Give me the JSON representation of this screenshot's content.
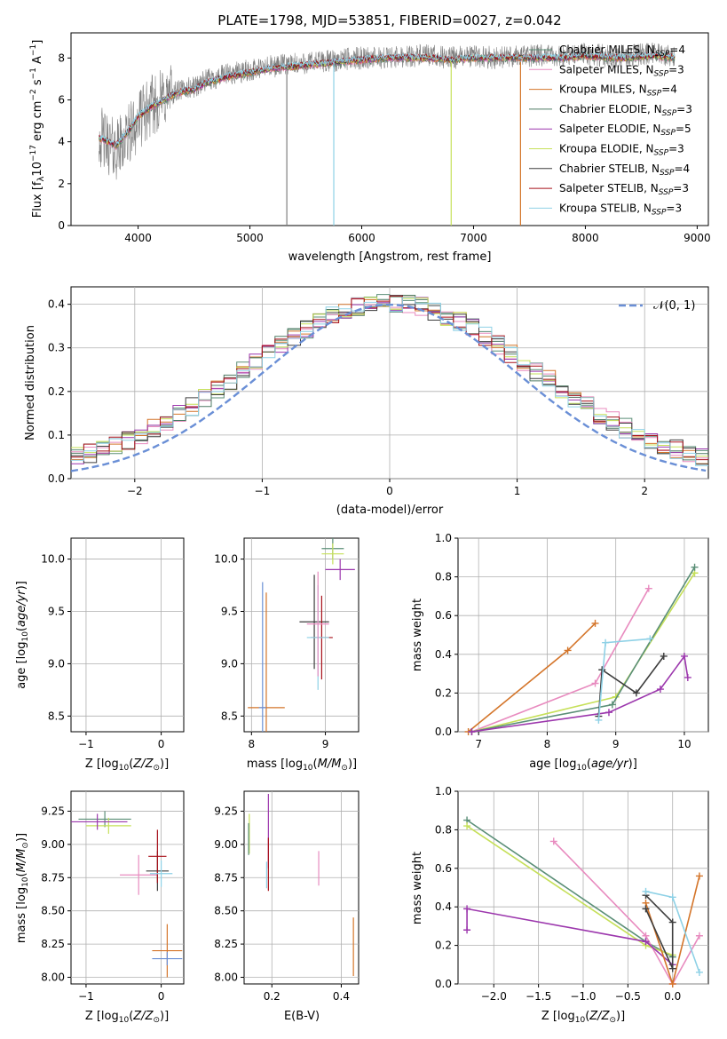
{
  "chart_data": [
    {
      "type": "line",
      "title": "PLATE=1798, MJD=53851, FIBERID=0027, z=0.042",
      "xlabel": "wavelength [Angstrom, rest frame]",
      "ylabel": "Flux [f_λ10^-17 erg cm^-2 s^-1 A^-1]",
      "xlim": [
        3400,
        9100
      ],
      "ylim": [
        0,
        9.2
      ],
      "xticks": [
        "4000",
        "5000",
        "6000",
        "7000",
        "8000",
        "9000"
      ],
      "yticks": [
        "0",
        "2",
        "4",
        "6",
        "8"
      ],
      "grid": false,
      "legend_position": "top-right",
      "observed": {
        "color": "#808080",
        "x": [
          3650,
          3700,
          3800,
          3900,
          4000,
          4100,
          4200,
          4300,
          4400,
          4500,
          4600,
          4800,
          5000,
          5200,
          5400,
          5600,
          5800,
          6000,
          6200,
          6400,
          6600,
          6800,
          7000,
          7200,
          7400,
          7600,
          7800,
          8000,
          8200,
          8400,
          8600,
          8800
        ],
        "y": [
          4.3,
          4.0,
          3.6,
          4.2,
          5.0,
          5.6,
          6.0,
          6.3,
          6.5,
          6.6,
          6.9,
          7.2,
          7.4,
          7.6,
          7.7,
          7.8,
          7.9,
          8.0,
          8.0,
          8.1,
          8.1,
          8.0,
          8.1,
          8.0,
          8.1,
          8.1,
          8.1,
          8.2,
          8.1,
          8.1,
          8.2,
          8.1
        ]
      },
      "series": [
        {
          "name": "Chabrier MILES, N_SSP=4",
          "color": "#5b8f77"
        },
        {
          "name": "Salpeter MILES, N_SSP=3",
          "color": "#e88bbf"
        },
        {
          "name": "Kroupa MILES, N_SSP=4",
          "color": "#d4752a"
        },
        {
          "name": "Chabrier ELODIE, N_SSP=3",
          "color": "#4d7a63"
        },
        {
          "name": "Salpeter ELODIE, N_SSP=5",
          "color": "#9c37ad"
        },
        {
          "name": "Kroupa ELODIE, N_SSP=3",
          "color": "#c6e05a"
        },
        {
          "name": "Chabrier STELIB, N_SSP=4",
          "color": "#3d3d3d"
        },
        {
          "name": "Salpeter STELIB, N_SSP=3",
          "color": "#a8111a"
        },
        {
          "name": "Kroupa STELIB, N_SSP=3",
          "color": "#8ed1e6"
        }
      ],
      "model_x": [
        3650,
        3700,
        3800,
        3900,
        4000,
        4100,
        4200,
        4300,
        4400,
        4500,
        4600,
        4800,
        5000,
        5200,
        5400,
        5600,
        5800,
        6000,
        6200,
        6400,
        6600,
        6800,
        7000,
        7200,
        7400,
        7600,
        7800,
        8000,
        8200,
        8400,
        8600,
        8800
      ],
      "model_y": [
        4.2,
        4.1,
        3.8,
        4.4,
        5.2,
        5.6,
        5.9,
        6.2,
        6.4,
        6.5,
        6.8,
        7.1,
        7.3,
        7.5,
        7.6,
        7.7,
        7.8,
        7.9,
        8.0,
        8.0,
        8.0,
        7.9,
        8.0,
        8.0,
        8.0,
        8.0,
        8.0,
        8.1,
        8.0,
        8.0,
        8.1,
        8.0
      ]
    },
    {
      "type": "bar",
      "xlabel": "(data-model)/error",
      "ylabel": "Normed distribution",
      "xlim": [
        -2.5,
        2.5
      ],
      "ylim": [
        0,
        0.44
      ],
      "xticks": [
        "−2",
        "−1",
        "0",
        "1",
        "2"
      ],
      "yticks": [
        "0.0",
        "0.1",
        "0.2",
        "0.3",
        "0.4"
      ],
      "grid": true,
      "legend": "𝒩(0, 1)",
      "legend_position": "top-right",
      "gaussian_color": "#6a8fd6",
      "bin_width": 0.1
    },
    {
      "type": "scatter",
      "xlabel": "Z [log10(Z/Z⊙)]",
      "ylabel": "age [log10(age/yr)]",
      "xlim": [
        -1.2,
        0.3
      ],
      "ylim": [
        8.35,
        10.2
      ],
      "xticks": [
        "−1",
        "0"
      ],
      "yticks": [
        "8.5",
        "9.0",
        "9.5",
        "10.0"
      ],
      "grid": true,
      "points": [
        {
          "x": -0.6,
          "y": 10.1,
          "xerr": 0.35,
          "yerr": 0.1,
          "color": "#5b8f77"
        },
        {
          "x": -0.7,
          "y": 10.05,
          "xerr": 0.3,
          "yerr": 0.1,
          "color": "#c6e05a"
        },
        {
          "x": -0.85,
          "y": 9.9,
          "xerr": 0.4,
          "yerr": 0.12,
          "color": "#9c37ad"
        },
        {
          "x": -0.3,
          "y": 9.38,
          "xerr": 0.25,
          "yerr": 0.3,
          "color": "#e88bbf"
        },
        {
          "x": -0.05,
          "y": 9.42,
          "xerr": 0.15,
          "yerr": 0.3,
          "color": "#3d3d3d"
        },
        {
          "x": -0.1,
          "y": 9.25,
          "xerr": 0.12,
          "yerr": 0.5,
          "color": "#a8111a"
        },
        {
          "x": 0.0,
          "y": 9.25,
          "xerr": 0.15,
          "yerr": 0.5,
          "color": "#8ed1e6"
        },
        {
          "x": 0.08,
          "y": 8.58,
          "xerr": 0.2,
          "yerr": 1.2,
          "color": "#d4752a"
        }
      ]
    },
    {
      "type": "scatter",
      "xlabel": "mass [log10(M/M⊙)]",
      "xlim": [
        7.9,
        9.45
      ],
      "ylim": [
        8.35,
        10.2
      ],
      "xticks": [
        "8",
        "9"
      ],
      "yticks": [
        "8.5",
        "9.0",
        "9.5",
        "10.0"
      ],
      "grid": true,
      "points": [
        {
          "x": 9.1,
          "y": 10.1,
          "xerr": 0.15,
          "yerr": 0.1,
          "color": "#5b8f77"
        },
        {
          "x": 9.1,
          "y": 10.05,
          "xerr": 0.15,
          "yerr": 0.1,
          "color": "#c6e05a"
        },
        {
          "x": 9.2,
          "y": 9.9,
          "xerr": 0.2,
          "yerr": 0.1,
          "color": "#9c37ad"
        },
        {
          "x": 8.85,
          "y": 9.4,
          "xerr": 0.2,
          "yerr": 0.45,
          "color": "#3d3d3d"
        },
        {
          "x": 8.95,
          "y": 9.25,
          "xerr": 0.15,
          "yerr": 0.4,
          "color": "#a8111a"
        },
        {
          "x": 8.9,
          "y": 9.25,
          "xerr": 0.15,
          "yerr": 0.5,
          "color": "#8ed1e6"
        },
        {
          "x": 8.9,
          "y": 9.38,
          "xerr": 0.15,
          "yerr": 0.5,
          "color": "#e88bbf"
        },
        {
          "x": 8.2,
          "y": 8.58,
          "xerr": 0.25,
          "yerr": 1.1,
          "color": "#d4752a"
        },
        {
          "x": 8.15,
          "y": 8.58,
          "xerr": 0.05,
          "yerr": 1.2,
          "color": "#6a8fd6"
        }
      ]
    },
    {
      "type": "line",
      "xlabel": "age [log10(age/yr)]",
      "ylabel": "mass weight",
      "xlim": [
        6.7,
        10.35
      ],
      "ylim": [
        0,
        1
      ],
      "xticks": [
        "7",
        "8",
        "9",
        "10"
      ],
      "yticks": [
        "0.0",
        "0.2",
        "0.4",
        "0.6",
        "0.8",
        "1.0"
      ],
      "grid": true,
      "series": [
        {
          "color": "#d4752a",
          "x": [
            6.85,
            8.3,
            8.7
          ],
          "y": [
            0.0,
            0.42,
            0.56
          ]
        },
        {
          "color": "#e88bbf",
          "x": [
            6.9,
            8.7,
            9.48
          ],
          "y": [
            0.0,
            0.25,
            0.74
          ]
        },
        {
          "color": "#c6e05a",
          "x": [
            6.9,
            9.0,
            10.15
          ],
          "y": [
            0.0,
            0.18,
            0.82
          ]
        },
        {
          "color": "#5b8f77",
          "x": [
            6.9,
            8.95,
            10.15
          ],
          "y": [
            0.0,
            0.14,
            0.85
          ]
        },
        {
          "color": "#9c37ad",
          "x": [
            6.9,
            8.9,
            9.65,
            10.0,
            10.05
          ],
          "y": [
            0.0,
            0.1,
            0.22,
            0.39,
            0.28
          ]
        },
        {
          "color": "#3d3d3d",
          "x": [
            8.75,
            8.8,
            9.3,
            9.7
          ],
          "y": [
            0.08,
            0.32,
            0.2,
            0.39
          ]
        },
        {
          "color": "#8ed1e6",
          "x": [
            8.75,
            8.85,
            9.5
          ],
          "y": [
            0.06,
            0.46,
            0.48
          ]
        }
      ]
    },
    {
      "type": "scatter",
      "xlabel": "Z [log10(Z/Z⊙)]",
      "ylabel": "mass [log10(M/M⊙)]",
      "xlim": [
        -1.2,
        0.3
      ],
      "ylim": [
        7.95,
        9.4
      ],
      "xticks": [
        "−1",
        "0"
      ],
      "yticks": [
        "8.00",
        "8.25",
        "8.50",
        "8.75",
        "9.00",
        "9.25"
      ],
      "grid": true,
      "points": [
        {
          "x": -0.75,
          "y": 9.19,
          "xerr": 0.35,
          "yerr": 0.06,
          "color": "#5b8f77"
        },
        {
          "x": -0.7,
          "y": 9.14,
          "xerr": 0.3,
          "yerr": 0.06,
          "color": "#c6e05a"
        },
        {
          "x": -0.85,
          "y": 9.17,
          "xerr": 0.4,
          "yerr": 0.06,
          "color": "#9c37ad"
        },
        {
          "x": -0.3,
          "y": 8.77,
          "xerr": 0.25,
          "yerr": 0.15,
          "color": "#e88bbf"
        },
        {
          "x": -0.05,
          "y": 8.8,
          "xerr": 0.15,
          "yerr": 0.15,
          "color": "#3d3d3d"
        },
        {
          "x": -0.05,
          "y": 8.91,
          "xerr": 0.12,
          "yerr": 0.2,
          "color": "#a8111a"
        },
        {
          "x": 0.0,
          "y": 8.78,
          "xerr": 0.15,
          "yerr": 0.1,
          "color": "#8ed1e6"
        },
        {
          "x": 0.08,
          "y": 8.2,
          "xerr": 0.2,
          "yerr": 0.2,
          "color": "#d4752a"
        },
        {
          "x": 0.08,
          "y": 8.14,
          "xerr": 0.2,
          "yerr": 0.05,
          "color": "#6a8fd6"
        }
      ]
    },
    {
      "type": "scatter",
      "xlabel": "E(B-V)",
      "xlim": [
        0.12,
        0.45
      ],
      "ylim": [
        7.95,
        9.4
      ],
      "xticks": [
        "0.2",
        "0.4"
      ],
      "yticks": [
        "8.00",
        "8.25",
        "8.50",
        "8.75",
        "9.00",
        "9.25"
      ],
      "grid": true,
      "points": [
        {
          "x": 0.135,
          "y": 9.08,
          "yerr": 0.15,
          "color": "#c6e05a"
        },
        {
          "x": 0.133,
          "y": 9.04,
          "yerr": 0.12,
          "color": "#5b8f77"
        },
        {
          "x": 0.19,
          "y": 9.1,
          "yerr": 0.28,
          "color": "#9c37ad"
        },
        {
          "x": 0.19,
          "y": 8.85,
          "yerr": 0.2,
          "color": "#a8111a"
        },
        {
          "x": 0.185,
          "y": 8.77,
          "yerr": 0.1,
          "color": "#8ed1e6"
        },
        {
          "x": 0.335,
          "y": 8.82,
          "yerr": 0.13,
          "color": "#e88bbf"
        },
        {
          "x": 0.435,
          "y": 8.23,
          "yerr": 0.22,
          "color": "#d4752a"
        }
      ]
    },
    {
      "type": "line",
      "xlabel": "Z [log10(Z/Z⊙)]",
      "ylabel": "mass weight",
      "xlim": [
        -2.4,
        0.4
      ],
      "ylim": [
        0,
        1
      ],
      "xticks": [
        "−2.0",
        "−1.5",
        "−1.0",
        "−0.5",
        "0.0"
      ],
      "yticks": [
        "0.0",
        "0.2",
        "0.4",
        "0.6",
        "0.8",
        "1.0"
      ],
      "grid": true,
      "series": [
        {
          "color": "#5b8f77",
          "x": [
            -2.3,
            -0.3,
            0.0
          ],
          "y": [
            0.85,
            0.22,
            0.14
          ]
        },
        {
          "color": "#c6e05a",
          "x": [
            -2.3,
            -0.3,
            0.0
          ],
          "y": [
            0.82,
            0.2,
            0.15
          ]
        },
        {
          "color": "#e88bbf",
          "x": [
            -1.33,
            -0.3,
            0.0,
            0.3
          ],
          "y": [
            0.74,
            0.25,
            0.0,
            0.25
          ]
        },
        {
          "color": "#9c37ad",
          "x": [
            -2.3,
            -2.3,
            -0.3,
            0.0
          ],
          "y": [
            0.28,
            0.39,
            0.22,
            0.1
          ]
        },
        {
          "color": "#d4752a",
          "x": [
            -0.3,
            0.0,
            0.3
          ],
          "y": [
            0.42,
            0.0,
            0.56
          ]
        },
        {
          "color": "#3d3d3d",
          "x": [
            -0.3,
            0.0,
            0.0,
            -0.3
          ],
          "y": [
            0.39,
            0.08,
            0.32,
            0.46
          ]
        },
        {
          "color": "#8ed1e6",
          "x": [
            -0.3,
            0.0,
            0.3
          ],
          "y": [
            0.48,
            0.45,
            0.06
          ]
        }
      ]
    }
  ]
}
